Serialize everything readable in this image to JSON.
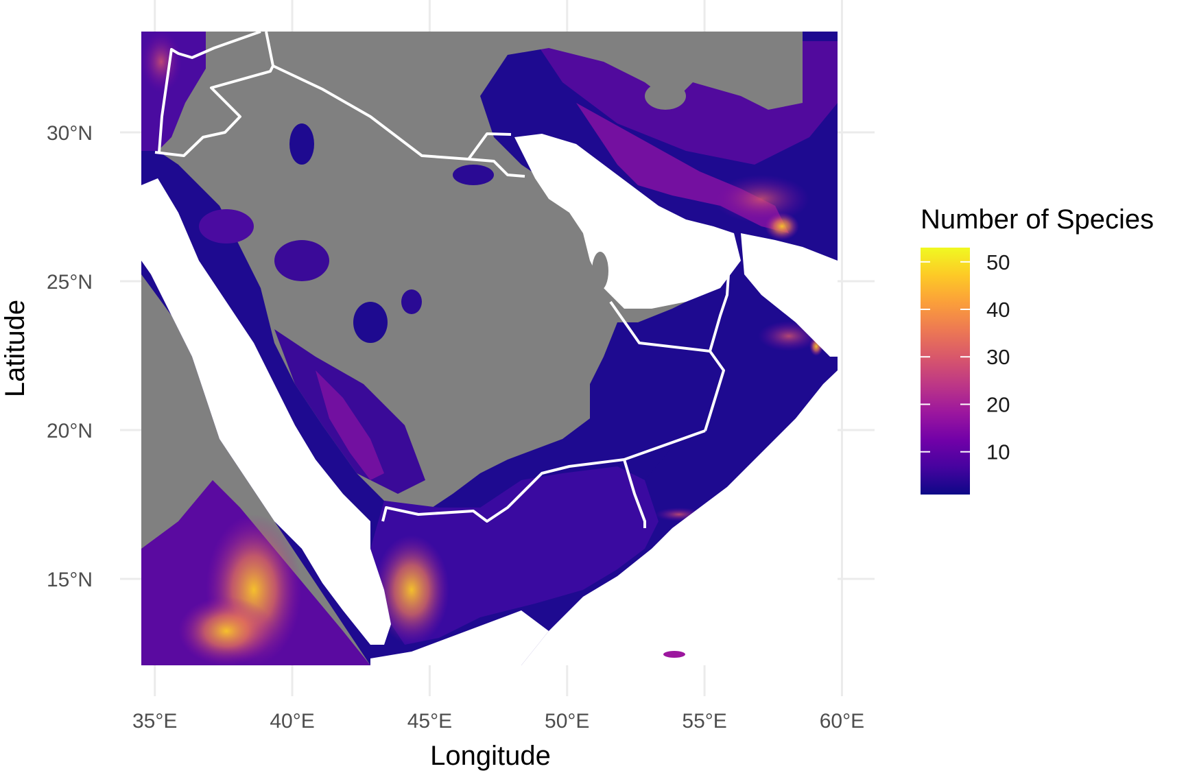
{
  "map": {
    "x_axis_title": "Longitude",
    "y_axis_title": "Latitude",
    "x_ticks": [
      {
        "value": 35,
        "label": "35°E"
      },
      {
        "value": 40,
        "label": "40°E"
      },
      {
        "value": 45,
        "label": "45°E"
      },
      {
        "value": 50,
        "label": "50°E"
      },
      {
        "value": 55,
        "label": "55°E"
      },
      {
        "value": 60,
        "label": "60°E"
      }
    ],
    "y_ticks": [
      {
        "value": 15,
        "label": "15°N"
      },
      {
        "value": 20,
        "label": "20°N"
      },
      {
        "value": 25,
        "label": "25°N"
      },
      {
        "value": 30,
        "label": "30°N"
      }
    ],
    "lon_range": [
      34.5,
      59.8
    ],
    "lat_range": [
      12.2,
      33.4
    ],
    "colors": {
      "background": "#ffffff",
      "grid": "#ebebeb",
      "no_data": "#808080",
      "sea": "#ffffff",
      "border": "#ffffff",
      "low": "#150a8c",
      "mid": "#7a05a8",
      "high": "#f2e627"
    },
    "legend": {
      "title": "Number of Species",
      "min": 1,
      "max": 53,
      "ticks": [
        {
          "value": 10,
          "label": "10"
        },
        {
          "value": 20,
          "label": "20"
        },
        {
          "value": 30,
          "label": "30"
        },
        {
          "value": 40,
          "label": "40"
        },
        {
          "value": 50,
          "label": "50"
        }
      ],
      "palette": [
        "#0d0887",
        "#46039f",
        "#7201a8",
        "#9c179e",
        "#bd3786",
        "#d8576b",
        "#ed7953",
        "#fb9f3a",
        "#fdca26",
        "#f0f921"
      ]
    }
  }
}
